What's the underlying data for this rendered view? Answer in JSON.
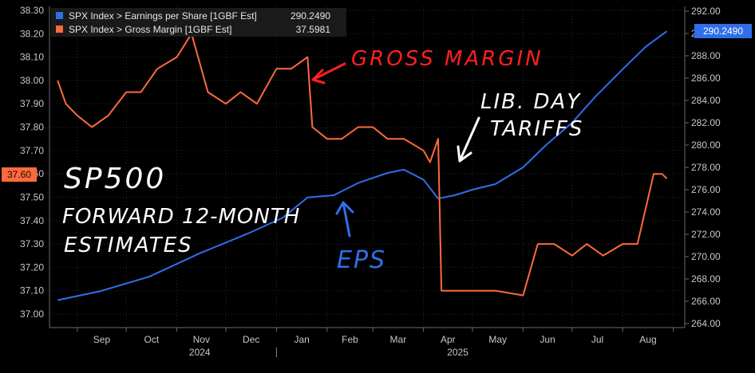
{
  "chart_data": {
    "type": "line",
    "title": "",
    "x_ticks": {
      "months": [
        "Sep",
        "Oct",
        "Nov",
        "Dec",
        "Jan",
        "Feb",
        "Mar",
        "Apr",
        "May",
        "Jun",
        "Jul",
        "Aug"
      ],
      "years": [
        "2024",
        "2025"
      ]
    },
    "y_left": {
      "range": [
        37.0,
        38.3
      ],
      "ticks": [
        "38.30",
        "38.20",
        "38.10",
        "38.00",
        "37.90",
        "37.80",
        "37.70",
        "37.60",
        "37.50",
        "37.40",
        "37.30",
        "37.20",
        "37.10",
        "37.00"
      ],
      "current_label": "37.60"
    },
    "y_right": {
      "range": [
        264.0,
        292.0
      ],
      "ticks": [
        "292.00",
        "290.00",
        "288.00",
        "286.00",
        "284.00",
        "282.00",
        "280.00",
        "278.00",
        "276.00",
        "274.00",
        "272.00",
        "270.00",
        "268.00",
        "266.00",
        "264.00"
      ],
      "current_label": "290.2490"
    },
    "legend": [
      {
        "label": "SPX Index > Earnings per Share [1GBF Est]",
        "value": "290.2490",
        "color": "#2f6fe8"
      },
      {
        "label": "SPX Index > Gross Margin [1GBF Est]",
        "value": "37.5981",
        "color": "#ff6a3d"
      }
    ],
    "series": [
      {
        "name": "SPX Index > Earnings per Share [1GBF Est]",
        "axis": "right",
        "color": "#2f6fe8",
        "x": [
          "2024-08-20",
          "2024-09-15",
          "2024-10-15",
          "2024-11-15",
          "2024-12-15",
          "2025-01-05",
          "2025-01-20",
          "2025-02-05",
          "2025-02-20",
          "2025-03-10",
          "2025-03-20",
          "2025-04-01",
          "2025-04-10",
          "2025-04-20",
          "2025-05-01",
          "2025-05-15",
          "2025-06-01",
          "2025-06-15",
          "2025-07-01",
          "2025-07-15",
          "2025-08-01",
          "2025-08-15",
          "2025-08-28"
        ],
        "values": [
          266.1,
          266.9,
          268.2,
          270.3,
          272.1,
          273.5,
          275.3,
          275.5,
          276.6,
          277.5,
          277.8,
          276.9,
          275.2,
          275.5,
          276.0,
          276.5,
          278.0,
          280.0,
          282.0,
          284.3,
          286.8,
          288.8,
          290.2
        ]
      },
      {
        "name": "SPX Index > Gross Margin [1GBF Est]",
        "axis": "left",
        "color": "#ff6a3d",
        "x": [
          "2024-08-20",
          "2024-08-25",
          "2024-09-01",
          "2024-09-10",
          "2024-09-20",
          "2024-10-01",
          "2024-10-10",
          "2024-10-20",
          "2024-11-01",
          "2024-11-10",
          "2024-11-20",
          "2024-12-01",
          "2024-12-10",
          "2024-12-20",
          "2025-01-01",
          "2025-01-10",
          "2025-01-20",
          "2025-01-23",
          "2025-02-01",
          "2025-02-10",
          "2025-02-20",
          "2025-03-01",
          "2025-03-10",
          "2025-03-20",
          "2025-04-01",
          "2025-04-05",
          "2025-04-10",
          "2025-04-12",
          "2025-04-20",
          "2025-05-01",
          "2025-05-15",
          "2025-06-01",
          "2025-06-10",
          "2025-06-20",
          "2025-07-01",
          "2025-07-10",
          "2025-07-20",
          "2025-08-01",
          "2025-08-10",
          "2025-08-15",
          "2025-08-20",
          "2025-08-25",
          "2025-08-28"
        ],
        "values": [
          38.0,
          37.9,
          37.85,
          37.8,
          37.85,
          37.95,
          37.95,
          38.05,
          38.1,
          38.2,
          37.95,
          37.9,
          37.95,
          37.9,
          38.05,
          38.05,
          38.1,
          37.8,
          37.75,
          37.75,
          37.8,
          37.8,
          37.75,
          37.75,
          37.7,
          37.65,
          37.75,
          37.1,
          37.1,
          37.1,
          37.1,
          37.08,
          37.3,
          37.3,
          37.25,
          37.3,
          37.25,
          37.3,
          37.3,
          37.45,
          37.6,
          37.6,
          37.58
        ]
      }
    ],
    "annotations": [
      {
        "text": "GROSS MARGIN",
        "color": "#ff2020"
      },
      {
        "text": "LIB. DAY",
        "color": "#ffffff"
      },
      {
        "text": "TARIFFS",
        "color": "#ffffff"
      },
      {
        "text": "SP500",
        "color": "#ffffff"
      },
      {
        "text": "FORWARD 12-MONTH",
        "color": "#ffffff"
      },
      {
        "text": "ESTIMATES",
        "color": "#ffffff"
      },
      {
        "text": "EPS",
        "color": "#2f6fe8"
      }
    ]
  }
}
